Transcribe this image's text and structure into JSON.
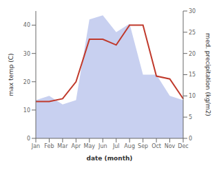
{
  "chart_data": {
    "type": "line",
    "xlabel": "date (month)",
    "ylabel": "max temp (C)",
    "y2label": "med. precipitation (kg/m2)",
    "categories": [
      "Jan",
      "Feb",
      "Mar",
      "Apr",
      "May",
      "Jun",
      "Jul",
      "Aug",
      "Sep",
      "Oct",
      "Nov",
      "Dec"
    ],
    "series": [
      {
        "type": "area",
        "axis": "y2",
        "color": "#c8d0f0",
        "values": [
          9,
          10,
          8,
          9,
          28,
          29,
          25,
          27,
          15,
          15,
          10,
          9
        ]
      },
      {
        "type": "line",
        "color": "#c0392b",
        "values": [
          13,
          13,
          14,
          20,
          35,
          35,
          33,
          40,
          40,
          22,
          21,
          14
        ]
      }
    ],
    "ylim": [
      0,
      45
    ],
    "yticks": [
      0,
      10,
      20,
      30,
      40
    ],
    "y2lim": [
      0,
      30
    ],
    "y2ticks": [
      0,
      5,
      10,
      15,
      20,
      25,
      30
    ],
    "grid": false
  }
}
